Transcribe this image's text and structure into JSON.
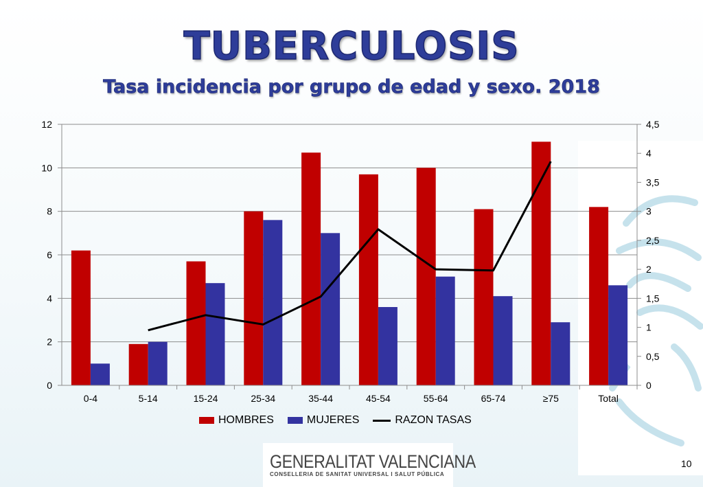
{
  "slide": {
    "title": "TUBERCULOSIS",
    "subtitle": "Tasa incidencia por grupo de edad y sexo. 2018",
    "page_number": "10"
  },
  "logo": {
    "name": "GENERALITAT VALENCIANA",
    "department": "CONSELLERIA DE SANITAT UNIVERSAL I SALUT PÚBLICA"
  },
  "colors": {
    "hombres": "#c00000",
    "mujeres": "#3333a0",
    "razon": "#000000",
    "title": "#2e3d99"
  },
  "chart_data": {
    "type": "bar",
    "categories": [
      "0-4",
      "5-14",
      "15-24",
      "25-34",
      "35-44",
      "45-54",
      "55-64",
      "65-74",
      "≥75",
      "Total"
    ],
    "series": [
      {
        "name": "HOMBRES",
        "type": "bar",
        "axis": "left",
        "values": [
          6.2,
          1.9,
          5.7,
          8.0,
          10.7,
          9.7,
          10.0,
          8.1,
          11.2,
          8.2
        ]
      },
      {
        "name": "MUJERES",
        "type": "bar",
        "axis": "left",
        "values": [
          1.0,
          2.0,
          4.7,
          7.6,
          7.0,
          3.6,
          5.0,
          4.1,
          2.9,
          4.6
        ]
      },
      {
        "name": "RAZON TASAS",
        "type": "line",
        "axis": "right",
        "values": [
          null,
          0.95,
          1.21,
          1.05,
          1.53,
          2.69,
          2.0,
          1.98,
          3.86,
          null
        ]
      }
    ],
    "ylim": [
      0,
      12
    ],
    "y_ticks": [
      "0",
      "2",
      "4",
      "6",
      "8",
      "10",
      "12"
    ],
    "y2lim": [
      0,
      4.5
    ],
    "y2_ticks": [
      "0",
      "0,5",
      "1",
      "1,5",
      "2",
      "2,5",
      "3",
      "3,5",
      "4",
      "4,5"
    ],
    "grid": true,
    "legend": "bottom"
  }
}
